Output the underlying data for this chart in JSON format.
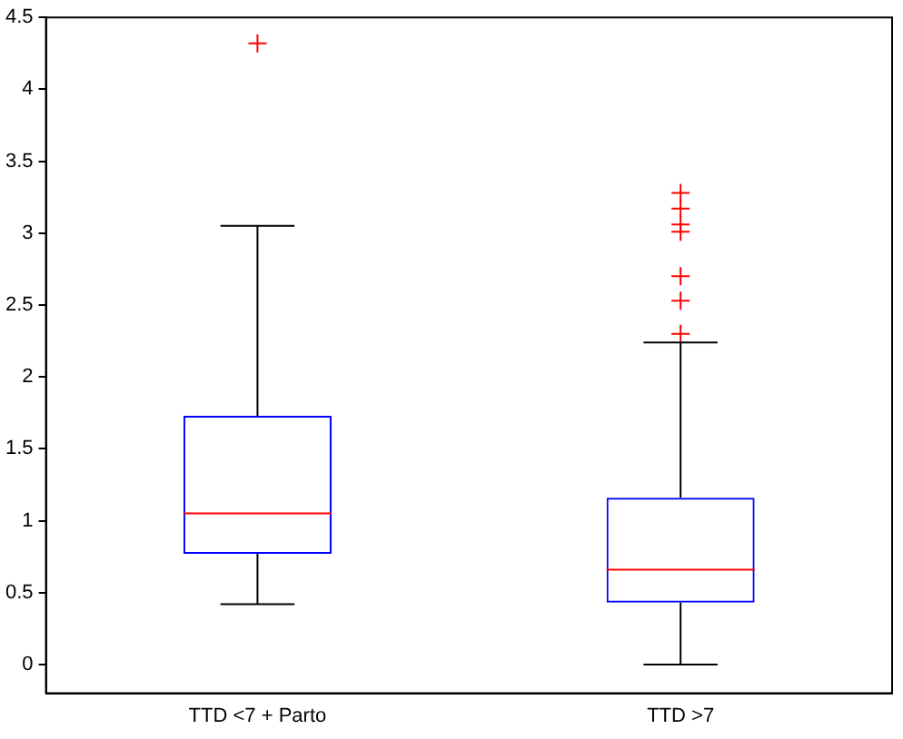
{
  "chart_data": {
    "type": "box",
    "categories": [
      "TTD <7 + Parto",
      "TTD >7"
    ],
    "boxes": [
      {
        "low": 0.42,
        "q1": 0.77,
        "median": 1.05,
        "q3": 1.73,
        "high": 3.05,
        "outliers": [
          4.32
        ]
      },
      {
        "low": 0,
        "q1": 0.43,
        "median": 0.66,
        "q3": 1.16,
        "high": 2.24,
        "outliers": [
          3.28,
          3.17,
          3.06,
          3.01,
          2.7,
          2.53,
          2.3
        ]
      }
    ],
    "ylim": [
      -0.2,
      4.5
    ],
    "yticks": [
      0,
      0.5,
      1,
      1.5,
      2,
      2.5,
      3,
      3.5,
      4,
      4.5
    ],
    "grid": false,
    "legend": false
  }
}
